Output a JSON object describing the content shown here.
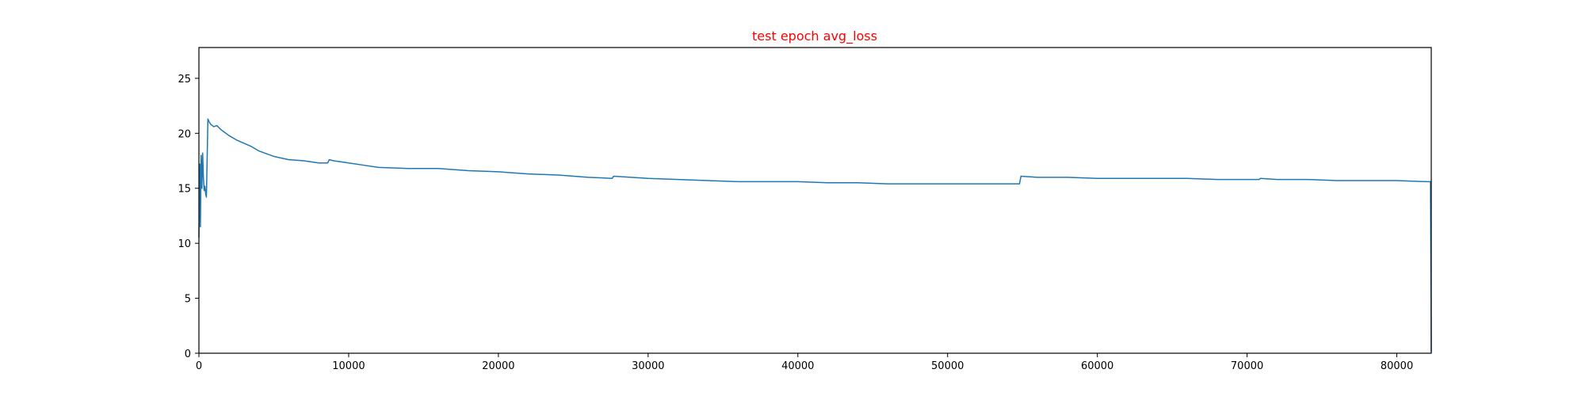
{
  "chart_data": {
    "type": "line",
    "title": "test epoch avg_loss",
    "title_color": "#ff0000",
    "xlabel": "",
    "ylabel": "",
    "xlim": [
      0,
      82300
    ],
    "ylim": [
      0,
      27.8
    ],
    "x_ticks": [
      0,
      10000,
      20000,
      30000,
      40000,
      50000,
      60000,
      70000,
      80000
    ],
    "x_tick_labels": [
      "0",
      "10000",
      "20000",
      "30000",
      "40000",
      "50000",
      "60000",
      "70000",
      "80000"
    ],
    "y_ticks": [
      0,
      5,
      10,
      15,
      20,
      25
    ],
    "y_tick_labels": [
      "0",
      "5",
      "10",
      "15",
      "20",
      "25"
    ],
    "grid": false,
    "legend": "none",
    "series": [
      {
        "color": "#1f77b4",
        "x": [
          0,
          60,
          100,
          150,
          200,
          250,
          300,
          350,
          400,
          450,
          500,
          600,
          700,
          800,
          1000,
          1200,
          1500,
          2000,
          2500,
          3000,
          3500,
          4000,
          5000,
          6000,
          7000,
          8000,
          8600,
          8700,
          9000,
          10000,
          11000,
          12000,
          14000,
          16000,
          18000,
          20000,
          22000,
          24000,
          26000,
          27600,
          27700,
          30000,
          32000,
          34000,
          36000,
          38000,
          40000,
          42000,
          44000,
          46000,
          48000,
          50000,
          52000,
          54800,
          54900,
          56000,
          58000,
          60000,
          62000,
          64000,
          66000,
          68000,
          70000,
          70800,
          70900,
          72000,
          74000,
          76000,
          78000,
          80000,
          82000,
          82250,
          82300
        ],
        "y": [
          10.5,
          17.2,
          11.5,
          18.0,
          15.0,
          18.2,
          16.0,
          14.8,
          15.2,
          14.5,
          14.2,
          21.3,
          21.0,
          20.8,
          20.6,
          20.7,
          20.3,
          19.8,
          19.4,
          19.1,
          18.8,
          18.4,
          17.9,
          17.6,
          17.5,
          17.3,
          17.3,
          17.6,
          17.5,
          17.3,
          17.1,
          16.9,
          16.8,
          16.8,
          16.6,
          16.5,
          16.3,
          16.2,
          16.0,
          15.9,
          16.1,
          15.9,
          15.8,
          15.7,
          15.6,
          15.6,
          15.6,
          15.5,
          15.5,
          15.4,
          15.4,
          15.4,
          15.4,
          15.4,
          16.1,
          16.0,
          16.0,
          15.9,
          15.9,
          15.9,
          15.9,
          15.8,
          15.8,
          15.8,
          15.9,
          15.8,
          15.8,
          15.7,
          15.7,
          15.7,
          15.6,
          15.6,
          0.1
        ]
      }
    ]
  }
}
